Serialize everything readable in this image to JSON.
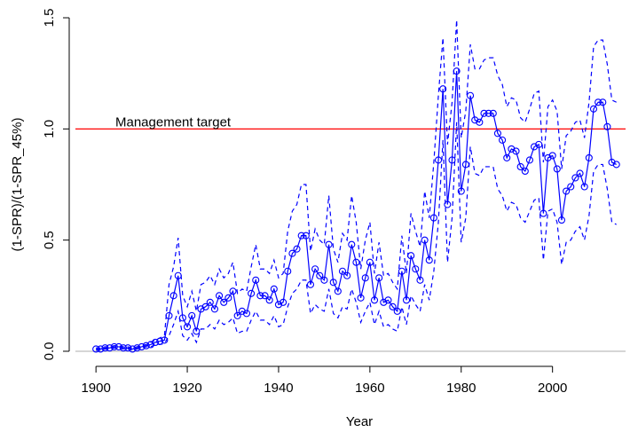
{
  "chart_data": {
    "type": "line",
    "xlabel": "Year",
    "ylabel": "(1-SPR)/(1-SPR_45%)",
    "annotation": "Management target",
    "x": [
      1900,
      1901,
      1902,
      1903,
      1904,
      1905,
      1906,
      1907,
      1908,
      1909,
      1910,
      1911,
      1912,
      1913,
      1914,
      1915,
      1916,
      1917,
      1918,
      1919,
      1920,
      1921,
      1922,
      1923,
      1924,
      1925,
      1926,
      1927,
      1928,
      1929,
      1930,
      1931,
      1932,
      1933,
      1934,
      1935,
      1936,
      1937,
      1938,
      1939,
      1940,
      1941,
      1942,
      1943,
      1944,
      1945,
      1946,
      1947,
      1948,
      1949,
      1950,
      1951,
      1952,
      1953,
      1954,
      1955,
      1956,
      1957,
      1958,
      1959,
      1960,
      1961,
      1962,
      1963,
      1964,
      1965,
      1966,
      1967,
      1968,
      1969,
      1970,
      1971,
      1972,
      1973,
      1974,
      1975,
      1976,
      1977,
      1978,
      1979,
      1980,
      1981,
      1982,
      1983,
      1984,
      1985,
      1986,
      1987,
      1988,
      1989,
      1990,
      1991,
      1992,
      1993,
      1994,
      1995,
      1996,
      1997,
      1998,
      1999,
      2000,
      2001,
      2002,
      2003,
      2004,
      2005,
      2006,
      2007,
      2008,
      2009,
      2010,
      2011,
      2012,
      2013,
      2014
    ],
    "series": [
      {
        "color": "#0000ff",
        "style": "solid",
        "markers": true,
        "values": [
          0.01,
          0.01,
          0.015,
          0.015,
          0.02,
          0.02,
          0.015,
          0.015,
          0.01,
          0.015,
          0.02,
          0.025,
          0.03,
          0.04,
          0.045,
          0.05,
          0.16,
          0.25,
          0.34,
          0.15,
          0.11,
          0.16,
          0.09,
          0.19,
          0.2,
          0.22,
          0.19,
          0.25,
          0.22,
          0.24,
          0.27,
          0.16,
          0.18,
          0.17,
          0.26,
          0.32,
          0.25,
          0.25,
          0.23,
          0.28,
          0.21,
          0.22,
          0.36,
          0.44,
          0.46,
          0.52,
          0.52,
          0.3,
          0.37,
          0.34,
          0.32,
          0.48,
          0.31,
          0.27,
          0.36,
          0.34,
          0.48,
          0.4,
          0.24,
          0.33,
          0.4,
          0.23,
          0.33,
          0.22,
          0.23,
          0.2,
          0.18,
          0.36,
          0.23,
          0.43,
          0.37,
          0.32,
          0.5,
          0.41,
          0.6,
          0.86,
          1.18,
          0.66,
          0.86,
          1.26,
          0.72,
          0.84,
          1.15,
          1.04,
          1.03,
          1.07,
          1.07,
          1.07,
          0.98,
          0.95,
          0.87,
          0.91,
          0.9,
          0.83,
          0.81,
          0.86,
          0.92,
          0.93,
          0.62,
          0.87,
          0.88,
          0.82,
          0.59,
          0.72,
          0.74,
          0.78,
          0.8,
          0.74,
          0.87,
          1.09,
          1.12,
          1.12,
          1.01,
          0.85,
          0.84
        ]
      },
      {
        "color": "#0000ff",
        "style": "dashed",
        "markers": false,
        "values": [
          0.015,
          0.015,
          0.02,
          0.02,
          0.025,
          0.025,
          0.02,
          0.02,
          0.015,
          0.02,
          0.025,
          0.03,
          0.04,
          0.05,
          0.06,
          0.07,
          0.3,
          0.38,
          0.51,
          0.25,
          0.2,
          0.27,
          0.18,
          0.3,
          0.31,
          0.34,
          0.3,
          0.37,
          0.33,
          0.35,
          0.4,
          0.26,
          0.28,
          0.27,
          0.38,
          0.48,
          0.37,
          0.37,
          0.35,
          0.41,
          0.33,
          0.35,
          0.54,
          0.63,
          0.66,
          0.75,
          0.75,
          0.45,
          0.55,
          0.5,
          0.48,
          0.7,
          0.46,
          0.4,
          0.53,
          0.5,
          0.7,
          0.58,
          0.37,
          0.5,
          0.58,
          0.35,
          0.49,
          0.34,
          0.35,
          0.31,
          0.28,
          0.52,
          0.35,
          0.62,
          0.54,
          0.47,
          0.72,
          0.6,
          0.85,
          1.15,
          1.41,
          0.93,
          1.12,
          1.49,
          0.96,
          1.08,
          1.38,
          1.27,
          1.27,
          1.31,
          1.32,
          1.32,
          1.24,
          1.2,
          1.1,
          1.14,
          1.13,
          1.05,
          1.03,
          1.09,
          1.16,
          1.17,
          0.85,
          1.1,
          1.13,
          1.08,
          0.82,
          0.97,
          0.99,
          1.03,
          1.04,
          0.96,
          1.12,
          1.37,
          1.4,
          1.4,
          1.29,
          1.13,
          1.12
        ]
      },
      {
        "color": "#0000ff",
        "style": "dashed",
        "markers": false,
        "values": [
          0.005,
          0.005,
          0.01,
          0.01,
          0.015,
          0.015,
          0.01,
          0.01,
          0.005,
          0.01,
          0.015,
          0.02,
          0.02,
          0.03,
          0.03,
          0.035,
          0.07,
          0.12,
          0.18,
          0.07,
          0.05,
          0.08,
          0.04,
          0.1,
          0.1,
          0.12,
          0.1,
          0.14,
          0.12,
          0.13,
          0.15,
          0.08,
          0.09,
          0.09,
          0.14,
          0.18,
          0.14,
          0.14,
          0.12,
          0.16,
          0.11,
          0.12,
          0.2,
          0.26,
          0.28,
          0.32,
          0.32,
          0.17,
          0.21,
          0.19,
          0.18,
          0.28,
          0.17,
          0.15,
          0.2,
          0.19,
          0.28,
          0.22,
          0.13,
          0.18,
          0.22,
          0.12,
          0.18,
          0.11,
          0.12,
          0.1,
          0.09,
          0.2,
          0.12,
          0.25,
          0.21,
          0.18,
          0.3,
          0.23,
          0.36,
          0.58,
          0.95,
          0.4,
          0.6,
          1.03,
          0.49,
          0.6,
          0.92,
          0.8,
          0.79,
          0.83,
          0.83,
          0.83,
          0.73,
          0.7,
          0.63,
          0.67,
          0.66,
          0.6,
          0.58,
          0.63,
          0.68,
          0.69,
          0.41,
          0.63,
          0.64,
          0.58,
          0.39,
          0.49,
          0.5,
          0.54,
          0.56,
          0.5,
          0.61,
          0.81,
          0.84,
          0.84,
          0.73,
          0.58,
          0.57
        ]
      }
    ],
    "hlines": [
      {
        "value": 0,
        "color": "#bebebe"
      },
      {
        "value": 1,
        "color": "#ff0000"
      }
    ],
    "xlim": [
      1895.5,
      2016
    ],
    "xticks": [
      1900,
      1920,
      1940,
      1960,
      1980,
      2000
    ],
    "ylim": [
      -0.04,
      1.54
    ],
    "yticks": [
      {
        "value": 0,
        "label": "0.0"
      },
      0.5,
      {
        "value": 1,
        "label": "1.0"
      },
      1.5
    ]
  }
}
